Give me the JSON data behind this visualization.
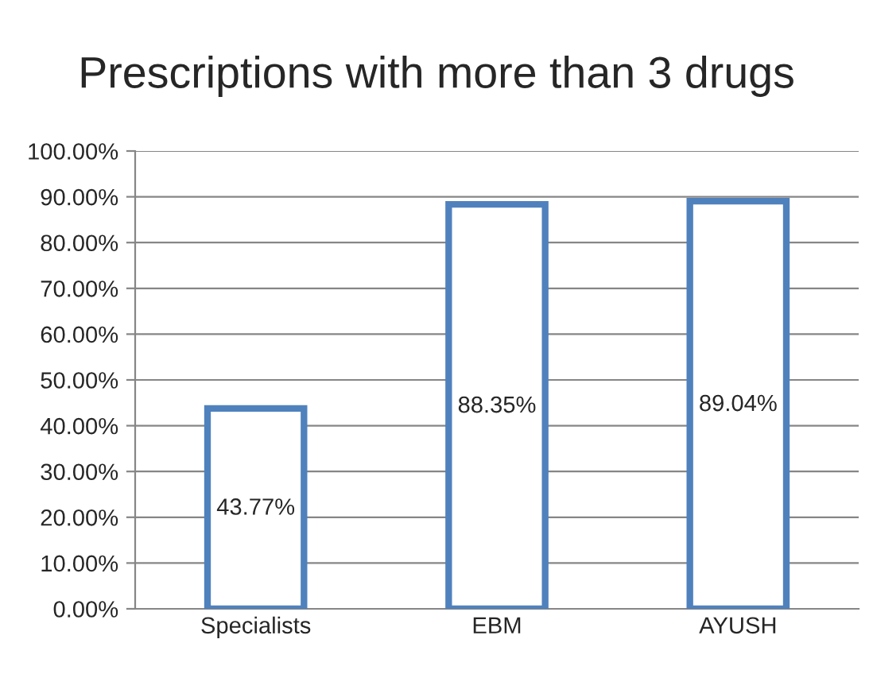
{
  "chart_data": {
    "type": "bar",
    "title": "Prescriptions with more than 3 drugs",
    "categories": [
      "Specialists",
      "EBM",
      "AYUSH"
    ],
    "values": [
      43.77,
      88.35,
      89.04
    ],
    "value_labels": [
      "43.77%",
      "88.35%",
      "89.04%"
    ],
    "color": "#4f81bd",
    "ylim": [
      0,
      100
    ],
    "yticks": [
      {
        "value": 0,
        "label": "0.00%"
      },
      {
        "value": 10,
        "label": "10.00%"
      },
      {
        "value": 20,
        "label": "20.00%"
      },
      {
        "value": 30,
        "label": "30.00%"
      },
      {
        "value": 40,
        "label": "40.00%"
      },
      {
        "value": 50,
        "label": "50.00%"
      },
      {
        "value": 60,
        "label": "60.00%"
      },
      {
        "value": 70,
        "label": "70.00%"
      },
      {
        "value": 80,
        "label": "80.00%"
      },
      {
        "value": 90,
        "label": "90.00%"
      },
      {
        "value": 100,
        "label": "100.00%"
      }
    ],
    "grid": "y"
  }
}
